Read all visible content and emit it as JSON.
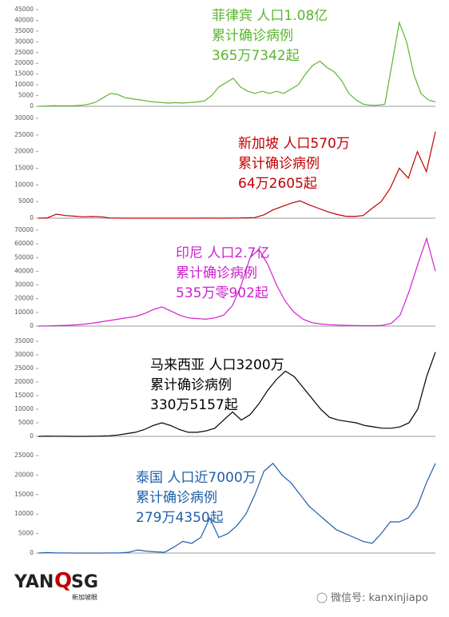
{
  "chart_data": [
    {
      "type": "line",
      "color": "#5ab52f",
      "annotations": [
        "菲律宾 人口1.08亿",
        "累计确诊病例",
        "365万7342起"
      ],
      "ylim": [
        0,
        45000
      ],
      "yticks": [
        0,
        5000,
        10000,
        15000,
        20000,
        25000,
        30000,
        35000,
        40000,
        45000
      ],
      "grid": false,
      "values": [
        0,
        100,
        300,
        200,
        200,
        300,
        500,
        1000,
        2000,
        4000,
        6000,
        5500,
        4000,
        3500,
        3000,
        2500,
        2000,
        1800,
        1500,
        1700,
        1500,
        1800,
        2000,
        2500,
        5000,
        9000,
        11000,
        13000,
        9000,
        7000,
        6000,
        7000,
        6000,
        7000,
        6000,
        8000,
        10000,
        15000,
        19000,
        21000,
        18000,
        16000,
        12000,
        6000,
        3000,
        1000,
        500,
        500,
        1000,
        20000,
        39000,
        30000,
        15000,
        6000,
        3000,
        2000
      ]
    },
    {
      "type": "line",
      "color": "#c00000",
      "annotations": [
        "新加坡  人口570万",
        "累计确诊病例",
        "64万2605起"
      ],
      "ylim": [
        0,
        30000
      ],
      "yticks": [
        0,
        5000,
        10000,
        15000,
        20000,
        25000,
        30000
      ],
      "grid": false,
      "values": [
        0,
        100,
        1200,
        800,
        600,
        400,
        500,
        400,
        50,
        20,
        10,
        10,
        10,
        10,
        10,
        10,
        10,
        10,
        20,
        30,
        10,
        20,
        50,
        100,
        200,
        1000,
        2500,
        3500,
        4500,
        5200,
        4000,
        3000,
        2000,
        1200,
        600,
        500,
        800,
        3000,
        5000,
        9000,
        15000,
        12000,
        20000,
        14000,
        26000
      ]
    },
    {
      "type": "line",
      "color": "#d020d0",
      "annotations": [
        "印尼  人口2.7亿",
        "累计确诊病例",
        "535万零902起"
      ],
      "ylim": [
        0,
        70000
      ],
      "yticks": [
        0,
        10000,
        20000,
        30000,
        40000,
        50000,
        60000,
        70000
      ],
      "grid": false,
      "values": [
        0,
        100,
        300,
        500,
        800,
        1200,
        2000,
        3000,
        4000,
        5000,
        6000,
        7000,
        9000,
        12000,
        14000,
        11000,
        8000,
        6000,
        5500,
        5000,
        6000,
        8000,
        15000,
        30000,
        50000,
        56000,
        45000,
        30000,
        18000,
        10000,
        5000,
        2500,
        1500,
        1000,
        700,
        500,
        400,
        300,
        300,
        500,
        2000,
        8000,
        25000,
        45000,
        64000,
        40000
      ]
    },
    {
      "type": "line",
      "color": "#000000",
      "annotations": [
        "马来西亚  人口3200万",
        "累计确诊病例",
        "330万5157起"
      ],
      "ylim": [
        0,
        35000
      ],
      "yticks": [
        0,
        5000,
        10000,
        15000,
        20000,
        25000,
        30000,
        35000
      ],
      "grid": false,
      "values": [
        0,
        100,
        50,
        20,
        10,
        10,
        20,
        100,
        200,
        500,
        1000,
        1500,
        2500,
        4000,
        5000,
        4000,
        2500,
        1500,
        1500,
        2000,
        3000,
        6000,
        9000,
        6000,
        8000,
        12000,
        17000,
        21000,
        24000,
        22000,
        18000,
        14000,
        10000,
        7000,
        6000,
        5500,
        5000,
        4000,
        3500,
        3000,
        3000,
        3500,
        5000,
        10000,
        22000,
        31000
      ]
    },
    {
      "type": "line",
      "color": "#1f5fa8",
      "annotations": [
        "泰国  人口近7000万",
        "累计确诊病例",
        "279万4350起"
      ],
      "ylim": [
        0,
        25000
      ],
      "yticks": [
        0,
        5000,
        10000,
        15000,
        20000,
        25000
      ],
      "grid": false,
      "values": [
        0,
        150,
        50,
        20,
        10,
        10,
        10,
        10,
        20,
        50,
        200,
        800,
        500,
        300,
        200,
        1500,
        3000,
        2500,
        4000,
        9000,
        4000,
        5000,
        7000,
        10000,
        15000,
        21000,
        23000,
        20000,
        18000,
        15000,
        12000,
        10000,
        8000,
        6000,
        5000,
        4000,
        3000,
        2500,
        5000,
        8000,
        8000,
        9000,
        12000,
        18000,
        23000
      ]
    }
  ],
  "footer": {
    "logo": [
      "YAN",
      "Q",
      "SG"
    ],
    "logo_sub": "新加坡眼",
    "wechat": "微信号: kanxinjiapo"
  }
}
